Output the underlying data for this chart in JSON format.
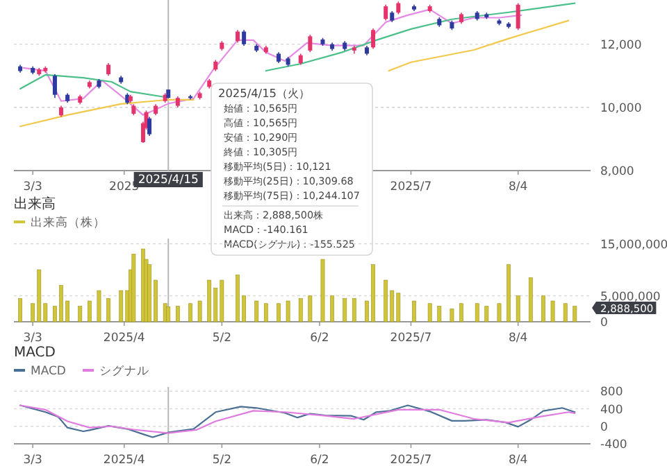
{
  "chart_data": [
    {
      "type": "candlestick",
      "xlim": [
        "2025-02-25",
        "2025-08-27"
      ],
      "ylim": [
        8000,
        13400
      ],
      "xticks": [
        {
          "value": "2025-03-03",
          "label": "3/3"
        },
        {
          "value": "2025-04-01",
          "label": "2025"
        },
        {
          "value": "2025-05-02",
          "label": null
        },
        {
          "value": "2025-06-02",
          "label": null
        },
        {
          "value": "2025-07-01",
          "label": "2025/7"
        },
        {
          "value": "2025-08-04",
          "label": "8/4"
        }
      ],
      "yticks": [
        {
          "value": 8000,
          "label": "8,000"
        },
        {
          "value": 10000,
          "label": "10,000"
        },
        {
          "value": 12000,
          "label": "12,000"
        }
      ],
      "grid": "y",
      "x": [
        "2025-02-27",
        "2025-03-03",
        "2025-03-05",
        "2025-03-07",
        "2025-03-10",
        "2025-03-12",
        "2025-03-14",
        "2025-03-18",
        "2025-03-21",
        "2025-03-24",
        "2025-03-27",
        "2025-03-31",
        "2025-04-02",
        "2025-04-03",
        "2025-04-04",
        "2025-04-07",
        "2025-04-08",
        "2025-04-09",
        "2025-04-11",
        "2025-04-14",
        "2025-04-15",
        "2025-04-18",
        "2025-04-22",
        "2025-04-25",
        "2025-04-28",
        "2025-04-30",
        "2025-05-02",
        "2025-05-07",
        "2025-05-09",
        "2025-05-13",
        "2025-05-16",
        "2025-05-20",
        "2025-05-23",
        "2025-05-27",
        "2025-05-30",
        "2025-06-03",
        "2025-06-06",
        "2025-06-10",
        "2025-06-13",
        "2025-06-17",
        "2025-06-19",
        "2025-06-23",
        "2025-06-25",
        "2025-06-27",
        "2025-07-02",
        "2025-07-07",
        "2025-07-10",
        "2025-07-14",
        "2025-07-17",
        "2025-07-22",
        "2025-07-25",
        "2025-07-29",
        "2025-08-01",
        "2025-08-04"
      ],
      "ohlc": [
        [
          11300,
          11350,
          11100,
          11150
        ],
        [
          11250,
          11300,
          11050,
          11100
        ],
        [
          11050,
          11250,
          11000,
          11200
        ],
        [
          11150,
          11300,
          11100,
          11250
        ],
        [
          11000,
          11050,
          10300,
          10400
        ],
        [
          9750,
          10050,
          9700,
          10000
        ],
        [
          10400,
          10450,
          10150,
          10200
        ],
        [
          10150,
          10400,
          10100,
          10350
        ],
        [
          10650,
          10850,
          10600,
          10800
        ],
        [
          10850,
          10900,
          10600,
          10650
        ],
        [
          11050,
          11400,
          11000,
          11350
        ],
        [
          10950,
          11000,
          10750,
          10800
        ],
        [
          10400,
          10450,
          10100,
          10150
        ],
        [
          10200,
          10400,
          10150,
          10350
        ],
        [
          9800,
          10100,
          9750,
          10050
        ],
        [
          8900,
          9550,
          8880,
          9500
        ],
        [
          9350,
          9900,
          9300,
          9850
        ],
        [
          9650,
          9700,
          9100,
          9150
        ],
        [
          9800,
          10100,
          9750,
          10050
        ],
        [
          10200,
          10450,
          10150,
          10400
        ],
        [
          10565,
          10565,
          10290,
          10305
        ],
        [
          10050,
          10350,
          10000,
          10300
        ],
        [
          10350,
          10400,
          10250,
          10300
        ],
        [
          10300,
          10500,
          10250,
          10450
        ],
        [
          10650,
          10900,
          10600,
          10850
        ],
        [
          11200,
          11500,
          11150,
          11450
        ],
        [
          11850,
          12100,
          11800,
          12050
        ],
        [
          12100,
          12450,
          12050,
          12400
        ],
        [
          12400,
          12450,
          11950,
          12000
        ],
        [
          11950,
          12000,
          11750,
          11800
        ],
        [
          11750,
          11950,
          11700,
          11900
        ],
        [
          11700,
          11750,
          11400,
          11450
        ],
        [
          11550,
          11600,
          11300,
          11350
        ],
        [
          11400,
          11700,
          11350,
          11650
        ],
        [
          11800,
          12300,
          11750,
          12250
        ],
        [
          12150,
          12200,
          11950,
          12000
        ],
        [
          12000,
          12050,
          11800,
          11850
        ],
        [
          12050,
          12100,
          11800,
          11850
        ],
        [
          11800,
          11950,
          11700,
          11900
        ],
        [
          11900,
          11950,
          11650,
          11700
        ],
        [
          11900,
          12500,
          11850,
          12450
        ],
        [
          12800,
          13250,
          12750,
          13200
        ],
        [
          13000,
          13050,
          12700,
          12750
        ],
        [
          13000,
          13350,
          12950,
          13300
        ],
        [
          13200,
          13250,
          13050,
          13100
        ],
        [
          13050,
          13250,
          13000,
          13200
        ],
        [
          12800,
          12850,
          12550,
          12600
        ],
        [
          12700,
          12750,
          12450,
          12500
        ],
        [
          12700,
          13000,
          12650,
          12950
        ],
        [
          13000,
          13050,
          12750,
          12800
        ],
        [
          12950,
          13000,
          12800,
          12850
        ],
        [
          12750,
          12800,
          12600,
          12650
        ],
        [
          12650,
          12700,
          12500,
          12550
        ],
        [
          12500,
          13300,
          12450,
          13250
        ]
      ],
      "colors": [
        "#2f3a9e",
        "#2f3a9e",
        "#e5336b",
        "#e5336b",
        "#2f3a9e",
        "#e5336b",
        "#2f3a9e",
        "#e5336b",
        "#e5336b",
        "#2f3a9e",
        "#e5336b",
        "#2f3a9e",
        "#2f3a9e",
        "#e5336b",
        "#e5336b",
        "#e5336b",
        "#e5336b",
        "#2f3a9e",
        "#e5336b",
        "#e5336b",
        "#2f3a9e",
        "#e5336b",
        "#2f3a9e",
        "#e5336b",
        "#e5336b",
        "#e5336b",
        "#e5336b",
        "#e5336b",
        "#2f3a9e",
        "#2f3a9e",
        "#e5336b",
        "#2f3a9e",
        "#2f3a9e",
        "#e5336b",
        "#e5336b",
        "#2f3a9e",
        "#2f3a9e",
        "#2f3a9e",
        "#e5336b",
        "#2f3a9e",
        "#e5336b",
        "#e5336b",
        "#2f3a9e",
        "#e5336b",
        "#2f3a9e",
        "#e5336b",
        "#2f3a9e",
        "#2f3a9e",
        "#e5336b",
        "#2f3a9e",
        "#2f3a9e",
        "#2f3a9e",
        "#2f3a9e",
        "#e5336b"
      ],
      "series": [
        {
          "type": "line",
          "color": "#e58be6",
          "x": [
            "2025-02-28",
            "2025-03-07",
            "2025-03-12",
            "2025-03-19",
            "2025-03-25",
            "2025-03-31",
            "2025-04-07",
            "2025-04-11",
            "2025-04-15",
            "2025-04-23",
            "2025-04-29",
            "2025-05-07",
            "2025-05-12",
            "2025-05-16",
            "2025-05-22",
            "2025-05-29",
            "2025-06-06",
            "2025-06-16",
            "2025-06-23",
            "2025-06-30",
            "2025-07-07",
            "2025-07-14",
            "2025-07-21",
            "2025-07-29",
            "2025-08-05"
          ],
          "values": [
            11250,
            11160,
            10200,
            10280,
            10850,
            10370,
            9760,
            9930,
            10121,
            10280,
            11160,
            12130,
            12130,
            11740,
            11470,
            12040,
            11960,
            11960,
            12700,
            12920,
            13100,
            12660,
            12840,
            12840,
            12920
          ]
        },
        {
          "type": "line",
          "color": "#4cc08a",
          "x": [
            "2025-02-27",
            "2025-03-07",
            "2025-03-19",
            "2025-03-28",
            "2025-04-03",
            "2025-04-15",
            "2025-04-28",
            "2025-05-16",
            "2025-05-27",
            "2025-06-09",
            "2025-06-20",
            "2025-07-01",
            "2025-07-14",
            "2025-08-01",
            "2025-08-22"
          ],
          "values": [
            10590,
            11030,
            10940,
            10810,
            10500,
            10309.68,
            null,
            11160,
            11380,
            11740,
            12130,
            12480,
            12790,
            13010,
            13300
          ]
        },
        {
          "type": "line",
          "color": "#f2c84b",
          "x": [
            "2025-02-27",
            "2025-03-14",
            "2025-03-31",
            "2025-04-15",
            "2025-04-23",
            "2025-05-30",
            "2025-06-24",
            "2025-07-01",
            "2025-07-21",
            "2025-08-01",
            "2025-08-20"
          ],
          "values": [
            9400,
            9760,
            10110,
            10244.107,
            10240,
            null,
            11160,
            11430,
            11820,
            12180,
            12750
          ]
        }
      ],
      "ref_lines": [
        {
          "axis": "x",
          "value": "2025-04-15",
          "label": "2025/4/15",
          "color": "#b8b8b8"
        }
      ],
      "annotations": [
        "2025/4/15（火）",
        "始値：10,565円",
        "高値：10,565円",
        "安値：10,290円",
        "終値：10,305円",
        "移動平均(5日)：10,121",
        "移動平均(25日)：10,309.68",
        "移動平均(75日)：10,244.107",
        "出来高：2,888,500株",
        "MACD：-140.161",
        "MACD(シグナル)：-155.525"
      ]
    },
    {
      "type": "bar",
      "title": "出来高",
      "xlim": [
        "2025-02-25",
        "2025-08-27"
      ],
      "ylim": [
        0,
        16000000
      ],
      "xticks": [
        {
          "value": "2025-03-03",
          "label": "3/3"
        },
        {
          "value": "2025-04-01",
          "label": "2025/4"
        },
        {
          "value": "2025-05-02",
          "label": "5/2"
        },
        {
          "value": "2025-06-02",
          "label": "6/2"
        },
        {
          "value": "2025-07-01",
          "label": "2025/7"
        },
        {
          "value": "2025-08-04",
          "label": "8/4"
        }
      ],
      "yticks": [
        {
          "value": 0,
          "label": "0"
        },
        {
          "value": 5000000,
          "label": "5,000,000"
        },
        {
          "value": 15000000,
          "label": "15,000,000"
        }
      ],
      "grid": "y",
      "legend": "top left",
      "x": [
        "2025-02-27",
        "2025-03-03",
        "2025-03-05",
        "2025-03-07",
        "2025-03-10",
        "2025-03-12",
        "2025-03-14",
        "2025-03-18",
        "2025-03-21",
        "2025-03-24",
        "2025-03-27",
        "2025-03-31",
        "2025-04-02",
        "2025-04-03",
        "2025-04-04",
        "2025-04-07",
        "2025-04-08",
        "2025-04-09",
        "2025-04-11",
        "2025-04-14",
        "2025-04-15",
        "2025-04-18",
        "2025-04-22",
        "2025-04-25",
        "2025-04-28",
        "2025-04-30",
        "2025-05-02",
        "2025-05-07",
        "2025-05-09",
        "2025-05-13",
        "2025-05-16",
        "2025-05-20",
        "2025-05-23",
        "2025-05-27",
        "2025-05-30",
        "2025-06-03",
        "2025-06-06",
        "2025-06-10",
        "2025-06-13",
        "2025-06-17",
        "2025-06-19",
        "2025-06-23",
        "2025-06-25",
        "2025-06-27",
        "2025-07-02",
        "2025-07-07",
        "2025-07-10",
        "2025-07-14",
        "2025-07-17",
        "2025-07-22",
        "2025-07-25",
        "2025-07-29",
        "2025-08-01",
        "2025-08-04",
        "2025-08-08",
        "2025-08-12",
        "2025-08-15",
        "2025-08-19",
        "2025-08-22"
      ],
      "series": [
        {
          "name": "出来高（株）",
          "color": "#cfc43a",
          "values": [
            4500000,
            3500000,
            10000000,
            3500000,
            3000000,
            7000000,
            4000000,
            3000000,
            4000000,
            6000000,
            4500000,
            6000000,
            6000000,
            10000000,
            13000000,
            14000000,
            12000000,
            11000000,
            8000000,
            3500000,
            2888500,
            3000000,
            3500000,
            4000000,
            8000000,
            6500000,
            8000000,
            9000000,
            5000000,
            4000000,
            3500000,
            3500000,
            4000000,
            4500000,
            5000000,
            12000000,
            5000000,
            4500000,
            4500000,
            4000000,
            11000000,
            8000000,
            6000000,
            5500000,
            4000000,
            3500000,
            3000000,
            2500000,
            3500000,
            3500000,
            3000000,
            3500000,
            11000000,
            5000000,
            8500000,
            5000000,
            4000000,
            3500000,
            3000000
          ]
        }
      ],
      "ref_lines": [
        {
          "axis": "x",
          "value": "2025-04-15",
          "color": "#b8b8b8"
        }
      ],
      "annotations": [
        "2,888,500"
      ]
    },
    {
      "type": "line",
      "title": "MACD",
      "xlim": [
        "2025-02-25",
        "2025-08-27"
      ],
      "ylim": [
        -400,
        900
      ],
      "xticks": [
        {
          "value": "2025-03-03",
          "label": "3/3"
        },
        {
          "value": "2025-04-01",
          "label": "2025/4"
        },
        {
          "value": "2025-05-02",
          "label": "5/2"
        },
        {
          "value": "2025-06-02",
          "label": "6/2"
        },
        {
          "value": "2025-07-01",
          "label": "2025/7"
        },
        {
          "value": "2025-08-04",
          "label": "8/4"
        }
      ],
      "yticks": [
        {
          "value": -400,
          "label": "-400"
        },
        {
          "value": 0,
          "label": "0"
        },
        {
          "value": 400,
          "label": "400"
        },
        {
          "value": 800,
          "label": "800"
        }
      ],
      "grid": "y",
      "legend": "top left",
      "series": [
        {
          "name": "MACD",
          "color": "#4a6f94",
          "x": [
            "2025-02-27",
            "2025-03-07",
            "2025-03-11",
            "2025-03-14",
            "2025-03-19",
            "2025-03-21",
            "2025-03-27",
            "2025-04-02",
            "2025-04-07",
            "2025-04-10",
            "2025-04-15",
            "2025-04-23",
            "2025-04-30",
            "2025-05-08",
            "2025-05-13",
            "2025-05-22",
            "2025-05-26",
            "2025-05-30",
            "2025-06-04",
            "2025-06-12",
            "2025-06-16",
            "2025-06-20",
            "2025-06-24",
            "2025-06-30",
            "2025-07-07",
            "2025-07-14",
            "2025-07-18",
            "2025-07-25",
            "2025-07-31",
            "2025-08-04",
            "2025-08-08",
            "2025-08-12",
            "2025-08-18",
            "2025-08-22"
          ],
          "values": [
            480,
            325,
            220,
            -30,
            -115,
            -90,
            10,
            -60,
            -180,
            -250,
            -140.161,
            -60,
            325,
            450,
            420,
            305,
            200,
            290,
            250,
            240,
            150,
            325,
            350,
            480,
            340,
            125,
            125,
            150,
            90,
            -10,
            150,
            350,
            420,
            325
          ]
        },
        {
          "name": "シグナル",
          "color": "#e07be0",
          "x": [
            "2025-02-27",
            "2025-03-07",
            "2025-03-14",
            "2025-03-21",
            "2025-03-28",
            "2025-04-04",
            "2025-04-15",
            "2025-04-24",
            "2025-04-30",
            "2025-05-12",
            "2025-05-22",
            "2025-06-04",
            "2025-06-13",
            "2025-06-27",
            "2025-07-10",
            "2025-07-21",
            "2025-08-01",
            "2025-08-11",
            "2025-08-20",
            "2025-08-22"
          ],
          "values": [
            480,
            380,
            115,
            -30,
            0,
            -75,
            -155.525,
            -80,
            115,
            355,
            325,
            240,
            170,
            380,
            380,
            170,
            85,
            220,
            325,
            300
          ]
        }
      ],
      "ref_lines": [
        {
          "axis": "x",
          "value": "2025-04-15",
          "color": "#b8b8b8"
        }
      ]
    }
  ]
}
